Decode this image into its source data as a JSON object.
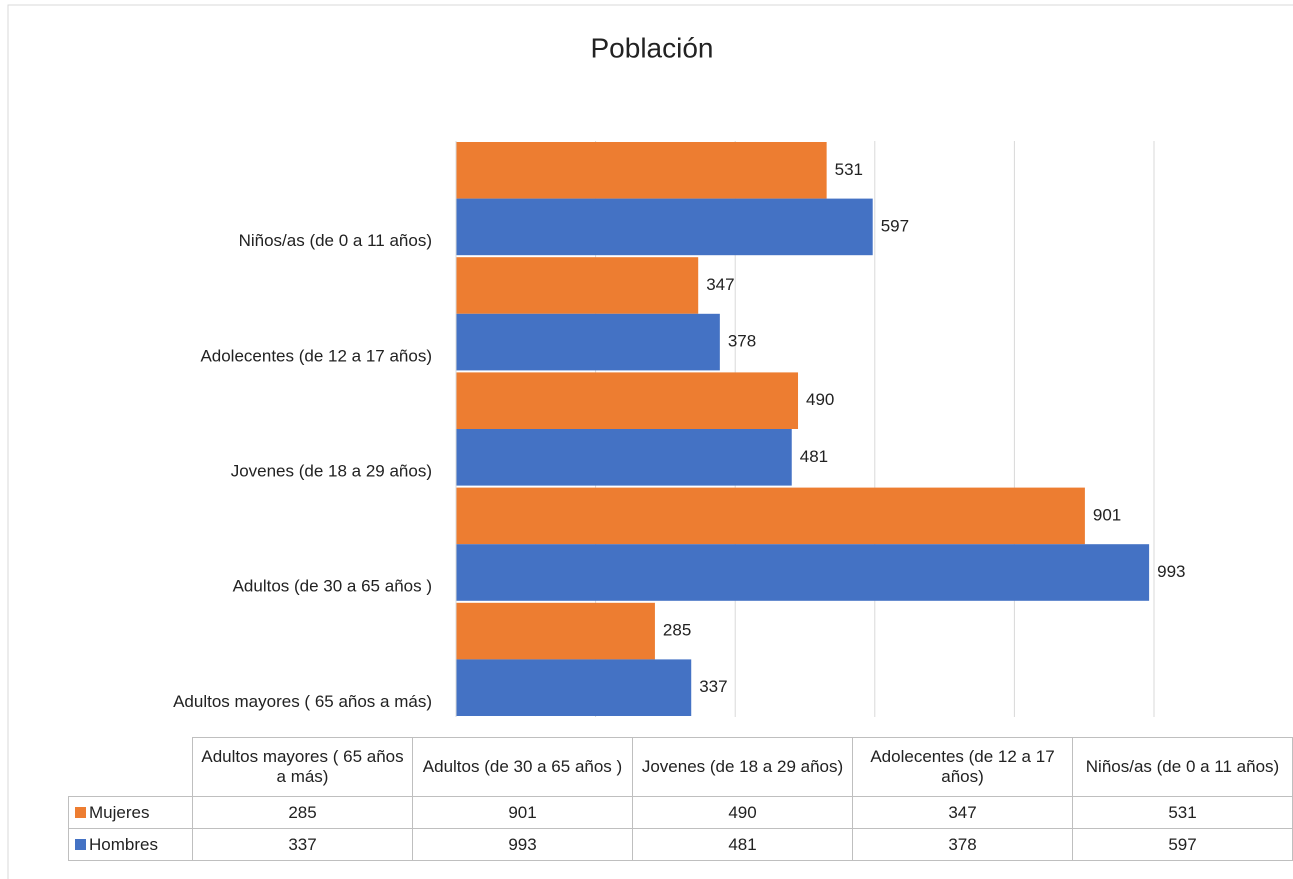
{
  "chart_data": {
    "type": "bar",
    "orientation": "horizontal",
    "title": "Población",
    "categories": [
      "Adultos mayores ( 65 años a más)",
      "Adultos (de 30 a 65 años )",
      "Jovenes (de 18 a 29 años)",
      "Adolecentes (de 12 a 17 años)",
      "Niños/as (de 0 a 11 años)"
    ],
    "series": [
      {
        "name": "Mujeres",
        "color": "#ed7d31",
        "values": [
          285,
          901,
          490,
          347,
          531
        ]
      },
      {
        "name": "Hombres",
        "color": "#4472c4",
        "values": [
          337,
          993,
          481,
          378,
          597
        ]
      }
    ],
    "xlim": [
      0,
      1000
    ],
    "xticks": [
      0,
      200,
      400,
      600,
      800,
      1000
    ],
    "grid": true
  }
}
